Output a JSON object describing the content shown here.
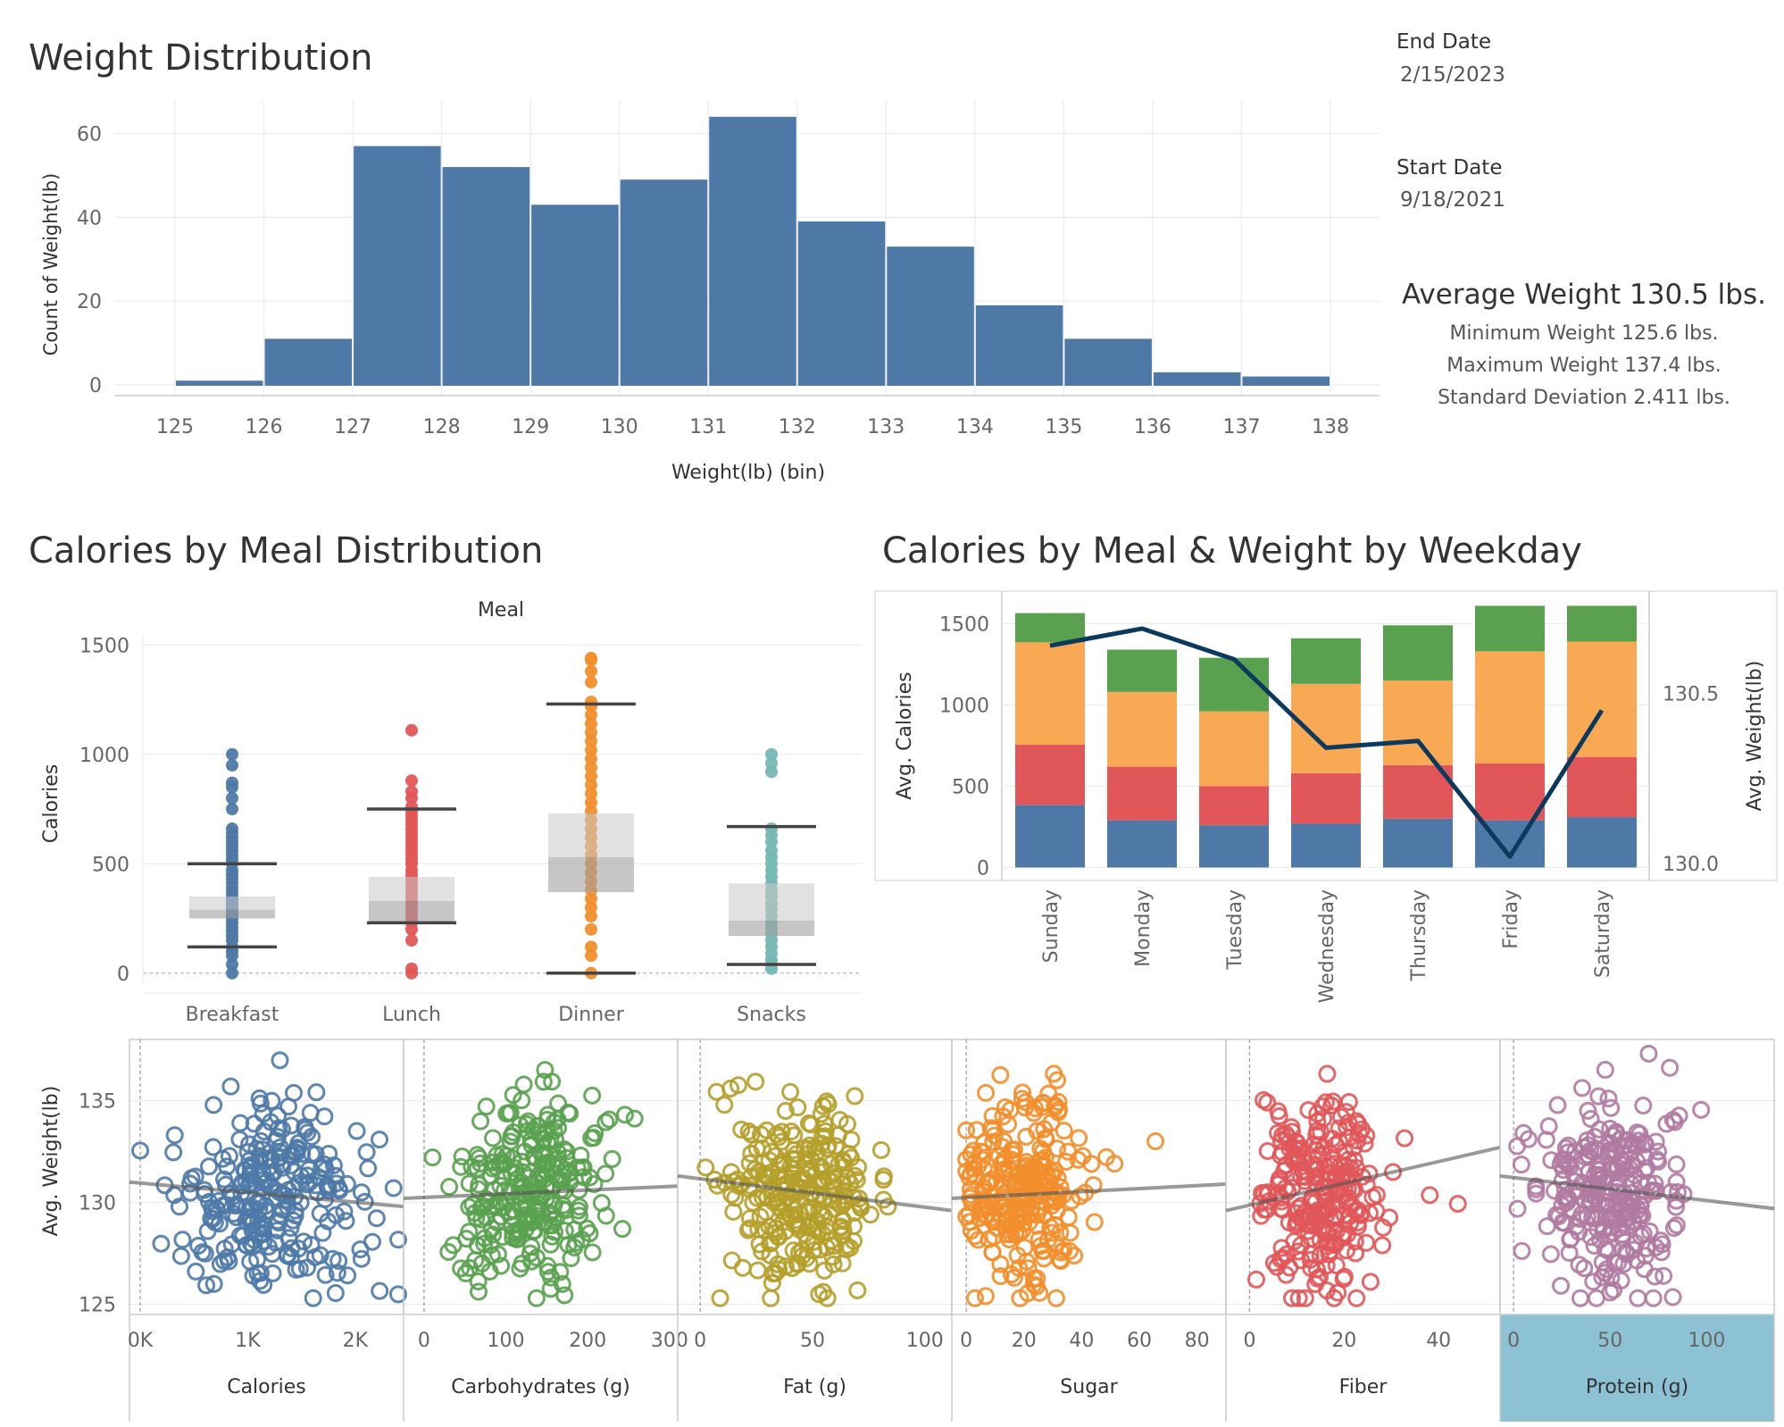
{
  "histogram": {
    "title": "Weight Distribution",
    "chart_data": {
      "type": "bar",
      "xlabel": "Weight(lb) (bin)",
      "ylabel": "Count of Weight(lb)",
      "bin_edges": [
        125,
        126,
        127,
        128,
        129,
        130,
        131,
        132,
        133,
        134,
        135,
        136,
        137,
        138
      ],
      "values": [
        1,
        11,
        57,
        52,
        43,
        49,
        64,
        39,
        33,
        19,
        11,
        3,
        2
      ],
      "ylim": [
        0,
        68
      ],
      "yticks": [
        0,
        20,
        40,
        60
      ],
      "color": "#4e79a7"
    }
  },
  "info": {
    "end_date_label": "End Date",
    "end_date": "2/15/2023",
    "start_date_label": "Start Date",
    "start_date": "9/18/2021",
    "avg": "Average Weight 130.5 lbs.",
    "min": "Minimum Weight 125.6 lbs.",
    "max": "Maximum Weight 137.4 lbs.",
    "std": "Standard Deviation 2.411 lbs."
  },
  "boxplot": {
    "title": "Calories by Meal Distribution",
    "chart_data": {
      "type": "box",
      "header": "Meal",
      "ylabel": "Calories",
      "ylim": [
        -50,
        1550
      ],
      "yticks": [
        0,
        500,
        1000,
        1500
      ],
      "categories": [
        "Breakfast",
        "Lunch",
        "Dinner",
        "Snacks"
      ],
      "colors": [
        "#4e79a7",
        "#e15759",
        "#f28e2b",
        "#76b7b2"
      ],
      "boxes": [
        {
          "whisker_low": 120,
          "q1": 250,
          "median": 290,
          "q3": 350,
          "whisker_high": 500
        },
        {
          "whisker_low": 230,
          "q1": 230,
          "median": 330,
          "q3": 440,
          "whisker_high": 750
        },
        {
          "whisker_low": 0,
          "q1": 370,
          "median": 530,
          "q3": 730,
          "whisker_high": 1230
        },
        {
          "whisker_low": 40,
          "q1": 170,
          "median": 240,
          "q3": 410,
          "whisker_high": 670
        }
      ],
      "points": [
        [
          0,
          40,
          80,
          100,
          120,
          150,
          170,
          190,
          210,
          230,
          250,
          260,
          270,
          280,
          290,
          300,
          310,
          320,
          330,
          340,
          350,
          370,
          390,
          410,
          430,
          450,
          470,
          500,
          520,
          540,
          560,
          580,
          600,
          620,
          640,
          660,
          750,
          800,
          850,
          870,
          950,
          1000
        ],
        [
          0,
          20,
          150,
          200,
          230,
          250,
          270,
          290,
          310,
          330,
          350,
          370,
          390,
          410,
          430,
          450,
          470,
          500,
          520,
          540,
          560,
          580,
          600,
          620,
          640,
          660,
          680,
          700,
          720,
          740,
          760,
          800,
          830,
          880,
          1110
        ],
        [
          0,
          80,
          120,
          200,
          260,
          300,
          340,
          380,
          420,
          460,
          500,
          540,
          580,
          620,
          660,
          700,
          740,
          780,
          820,
          860,
          900,
          940,
          980,
          1020,
          1060,
          1100,
          1140,
          1180,
          1220,
          1240,
          1330,
          1380,
          1430,
          1440
        ],
        [
          20,
          40,
          60,
          90,
          120,
          150,
          180,
          200,
          230,
          260,
          290,
          320,
          350,
          380,
          410,
          440,
          470,
          500,
          530,
          560,
          600,
          630,
          660,
          920,
          960,
          1000
        ]
      ]
    }
  },
  "weekday": {
    "title": "Calories by Meal & Weight by Weekday",
    "chart_data": {
      "type": "bar",
      "stacked": true,
      "categories": [
        "Sunday",
        "Monday",
        "Tuesday",
        "Wednesday",
        "Thursday",
        "Friday",
        "Saturday"
      ],
      "ylabel": "Avg. Calories",
      "y2label": "Avg. Weight(lb)",
      "ylim": [
        -80,
        1700
      ],
      "yticks": [
        0,
        500,
        1000,
        1500
      ],
      "y2lim": [
        129.95,
        130.8
      ],
      "y2ticks": [
        130.0,
        130.5
      ],
      "y2ticklabels": [
        "130.0",
        "130.5"
      ],
      "series": [
        {
          "color": "#4e79a7",
          "values": [
            385,
            290,
            260,
            270,
            300,
            290,
            310
          ]
        },
        {
          "color": "#e15759",
          "values": [
            370,
            330,
            240,
            310,
            330,
            350,
            370
          ]
        },
        {
          "color": "#f9a854",
          "values": [
            630,
            460,
            460,
            550,
            520,
            690,
            710
          ]
        },
        {
          "color": "#59a14f",
          "values": [
            180,
            260,
            330,
            280,
            340,
            280,
            220
          ]
        }
      ],
      "line": {
        "color": "#0b3a5e",
        "values": [
          130.64,
          130.69,
          130.6,
          130.34,
          130.36,
          130.02,
          130.45
        ]
      }
    }
  },
  "scatter": {
    "chart_data": {
      "type": "scatter",
      "ylabel": "Avg. Weight(lb)",
      "ylim": [
        124.5,
        138
      ],
      "yticks": [
        125,
        130,
        135
      ],
      "panels": [
        {
          "label": "Calories",
          "color": "#4e79a7",
          "xlim": [
            -100,
            2450
          ],
          "ticks": [
            0,
            1000,
            2000
          ],
          "ticklabels": [
            "0K",
            "1K",
            "2K"
          ],
          "trend": [
            131.0,
            129.8
          ],
          "x0": 0,
          "cx": 1250,
          "sx": 420,
          "xmin": 0,
          "xmax": 2400
        },
        {
          "label": "Carbohydrates (g)",
          "color": "#59a14f",
          "xlim": [
            -25,
            310
          ],
          "ticks": [
            0,
            100,
            200,
            300
          ],
          "ticklabels": [
            "0",
            "100",
            "200",
            "300"
          ],
          "trend": [
            130.2,
            130.8
          ],
          "x0": 0,
          "cx": 130,
          "sx": 45,
          "xmin": 0,
          "xmax": 300
        },
        {
          "label": "Fat (g)",
          "color": "#b59e2a",
          "xlim": [
            -10,
            112
          ],
          "ticks": [
            0,
            50,
            100
          ],
          "ticklabels": [
            "0",
            "50",
            "100"
          ],
          "trend": [
            131.3,
            129.6
          ],
          "x0": 0,
          "cx": 45,
          "sx": 16,
          "xmin": 0,
          "xmax": 110
        },
        {
          "label": "Sugar",
          "color": "#f28e2b",
          "xlim": [
            -5,
            90
          ],
          "ticks": [
            0,
            20,
            40,
            60,
            80
          ],
          "ticklabels": [
            "0",
            "20",
            "40",
            "60",
            "80"
          ],
          "trend": [
            130.2,
            130.9
          ],
          "x0": 0,
          "cx": 18,
          "sx": 11,
          "xmin": 0,
          "xmax": 88
        },
        {
          "label": "Fiber",
          "color": "#e15759",
          "xlim": [
            -5,
            53
          ],
          "ticks": [
            0,
            20,
            40
          ],
          "ticklabels": [
            "0",
            "20",
            "40"
          ],
          "trend": [
            129.6,
            132.7
          ],
          "x0": 0,
          "cx": 15,
          "sx": 6,
          "xmin": 0,
          "xmax": 52
        },
        {
          "label": "Protein (g)",
          "color": "#b07aa1",
          "xlim": [
            -7,
            135
          ],
          "ticks": [
            0,
            50,
            100
          ],
          "ticklabels": [
            "0",
            "50",
            "100"
          ],
          "trend": [
            131.3,
            129.7
          ],
          "x0": 0,
          "cx": 50,
          "sx": 18,
          "xmin": 0,
          "xmax": 130
        }
      ]
    }
  }
}
